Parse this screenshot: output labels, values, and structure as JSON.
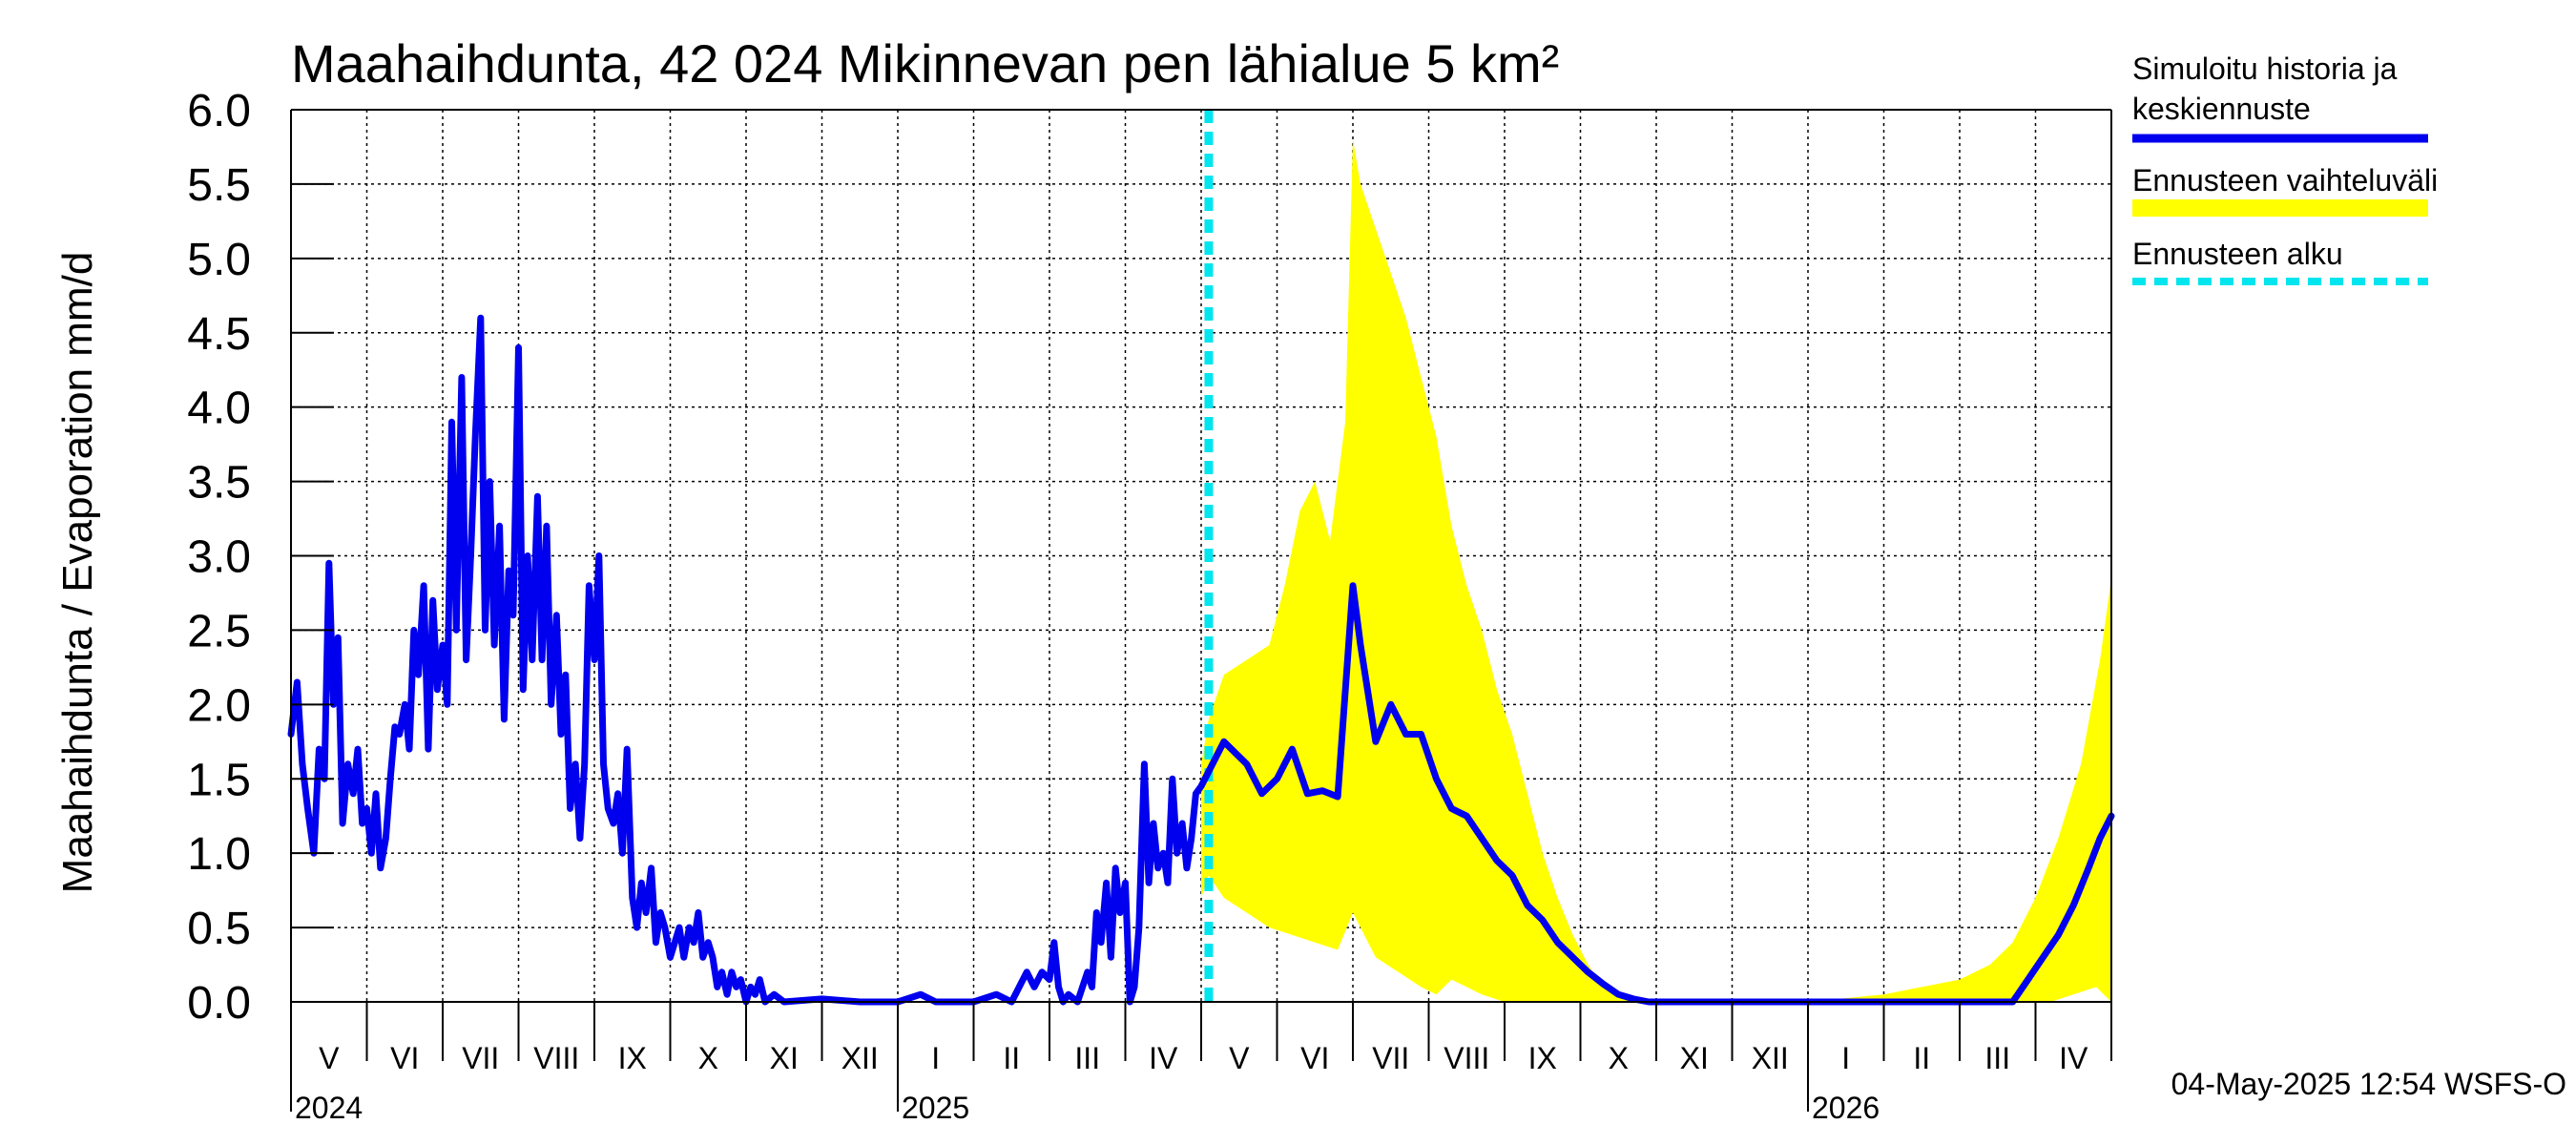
{
  "chart_data": {
    "type": "line",
    "title": "Maahaihdunta, 42 024 Mikinnevan pen lähialue 5 km²",
    "ylabel": "Maahaihdunta / Evaporation   mm/d",
    "ylim": [
      0,
      6
    ],
    "yticks": [
      "0.0",
      "0.5",
      "1.0",
      "1.5",
      "2.0",
      "2.5",
      "3.0",
      "3.5",
      "4.0",
      "4.5",
      "5.0",
      "5.5",
      "6.0"
    ],
    "x_range_months": [
      0,
      24
    ],
    "forecast_start_month": 12.1,
    "month_labels": [
      {
        "label": "V",
        "m": 0
      },
      {
        "label": "VI",
        "m": 1
      },
      {
        "label": "VII",
        "m": 2
      },
      {
        "label": "VIII",
        "m": 3
      },
      {
        "label": "IX",
        "m": 4
      },
      {
        "label": "X",
        "m": 5
      },
      {
        "label": "XI",
        "m": 6
      },
      {
        "label": "XII",
        "m": 7
      },
      {
        "label": "I",
        "m": 8
      },
      {
        "label": "II",
        "m": 9
      },
      {
        "label": "III",
        "m": 10
      },
      {
        "label": "IV",
        "m": 11
      },
      {
        "label": "V",
        "m": 12
      },
      {
        "label": "VI",
        "m": 13
      },
      {
        "label": "VII",
        "m": 14
      },
      {
        "label": "VIII",
        "m": 15
      },
      {
        "label": "IX",
        "m": 16
      },
      {
        "label": "X",
        "m": 17
      },
      {
        "label": "XI",
        "m": 18
      },
      {
        "label": "XII",
        "m": 19
      },
      {
        "label": "I",
        "m": 20
      },
      {
        "label": "II",
        "m": 21
      },
      {
        "label": "III",
        "m": 22
      },
      {
        "label": "IV",
        "m": 23
      }
    ],
    "year_labels": [
      {
        "label": "2024",
        "m": 0
      },
      {
        "label": "2025",
        "m": 8
      },
      {
        "label": "2026",
        "m": 20
      }
    ],
    "series": [
      {
        "name": "Simuloitu historia ja keskiennuste",
        "color": "#0000ee",
        "points": [
          [
            0.0,
            1.8
          ],
          [
            0.08,
            2.15
          ],
          [
            0.15,
            1.6
          ],
          [
            0.22,
            1.3
          ],
          [
            0.3,
            1.0
          ],
          [
            0.37,
            1.7
          ],
          [
            0.44,
            1.5
          ],
          [
            0.5,
            2.95
          ],
          [
            0.56,
            2.0
          ],
          [
            0.62,
            2.45
          ],
          [
            0.68,
            1.2
          ],
          [
            0.75,
            1.6
          ],
          [
            0.82,
            1.4
          ],
          [
            0.88,
            1.7
          ],
          [
            0.94,
            1.2
          ],
          [
            1.0,
            1.3
          ],
          [
            1.06,
            1.0
          ],
          [
            1.12,
            1.4
          ],
          [
            1.18,
            0.9
          ],
          [
            1.25,
            1.1
          ],
          [
            1.31,
            1.5
          ],
          [
            1.37,
            1.85
          ],
          [
            1.43,
            1.8
          ],
          [
            1.5,
            2.0
          ],
          [
            1.56,
            1.7
          ],
          [
            1.62,
            2.5
          ],
          [
            1.68,
            2.2
          ],
          [
            1.75,
            2.8
          ],
          [
            1.81,
            1.7
          ],
          [
            1.87,
            2.7
          ],
          [
            1.93,
            2.1
          ],
          [
            2.0,
            2.4
          ],
          [
            2.06,
            2.0
          ],
          [
            2.12,
            3.9
          ],
          [
            2.18,
            2.5
          ],
          [
            2.25,
            4.2
          ],
          [
            2.31,
            2.3
          ],
          [
            2.37,
            3.0
          ],
          [
            2.43,
            3.8
          ],
          [
            2.5,
            4.6
          ],
          [
            2.56,
            2.5
          ],
          [
            2.62,
            3.5
          ],
          [
            2.68,
            2.4
          ],
          [
            2.75,
            3.2
          ],
          [
            2.81,
            1.9
          ],
          [
            2.87,
            2.9
          ],
          [
            2.93,
            2.6
          ],
          [
            3.0,
            4.4
          ],
          [
            3.06,
            2.1
          ],
          [
            3.12,
            3.0
          ],
          [
            3.18,
            2.3
          ],
          [
            3.25,
            3.4
          ],
          [
            3.31,
            2.3
          ],
          [
            3.37,
            3.2
          ],
          [
            3.43,
            2.0
          ],
          [
            3.5,
            2.6
          ],
          [
            3.56,
            1.8
          ],
          [
            3.62,
            2.2
          ],
          [
            3.68,
            1.3
          ],
          [
            3.75,
            1.6
          ],
          [
            3.81,
            1.1
          ],
          [
            3.87,
            1.6
          ],
          [
            3.93,
            2.8
          ],
          [
            4.0,
            2.3
          ],
          [
            4.06,
            3.0
          ],
          [
            4.12,
            1.6
          ],
          [
            4.18,
            1.3
          ],
          [
            4.25,
            1.2
          ],
          [
            4.31,
            1.4
          ],
          [
            4.37,
            1.0
          ],
          [
            4.43,
            1.7
          ],
          [
            4.5,
            0.7
          ],
          [
            4.56,
            0.5
          ],
          [
            4.62,
            0.8
          ],
          [
            4.68,
            0.6
          ],
          [
            4.75,
            0.9
          ],
          [
            4.81,
            0.4
          ],
          [
            4.87,
            0.6
          ],
          [
            4.93,
            0.5
          ],
          [
            5.0,
            0.3
          ],
          [
            5.06,
            0.4
          ],
          [
            5.12,
            0.5
          ],
          [
            5.18,
            0.3
          ],
          [
            5.25,
            0.5
          ],
          [
            5.31,
            0.4
          ],
          [
            5.37,
            0.6
          ],
          [
            5.43,
            0.3
          ],
          [
            5.5,
            0.4
          ],
          [
            5.56,
            0.3
          ],
          [
            5.62,
            0.1
          ],
          [
            5.68,
            0.2
          ],
          [
            5.75,
            0.05
          ],
          [
            5.81,
            0.2
          ],
          [
            5.87,
            0.1
          ],
          [
            5.93,
            0.15
          ],
          [
            6.0,
            0.0
          ],
          [
            6.06,
            0.1
          ],
          [
            6.12,
            0.05
          ],
          [
            6.18,
            0.15
          ],
          [
            6.25,
            0.0
          ],
          [
            6.37,
            0.05
          ],
          [
            6.5,
            0.0
          ],
          [
            7.0,
            0.02
          ],
          [
            7.5,
            0.0
          ],
          [
            8.0,
            0.0
          ],
          [
            8.3,
            0.05
          ],
          [
            8.5,
            0.0
          ],
          [
            9.0,
            0.0
          ],
          [
            9.3,
            0.05
          ],
          [
            9.5,
            0.0
          ],
          [
            9.7,
            0.2
          ],
          [
            9.8,
            0.1
          ],
          [
            9.9,
            0.2
          ],
          [
            10.0,
            0.15
          ],
          [
            10.06,
            0.4
          ],
          [
            10.12,
            0.1
          ],
          [
            10.18,
            0.0
          ],
          [
            10.25,
            0.05
          ],
          [
            10.37,
            0.0
          ],
          [
            10.5,
            0.2
          ],
          [
            10.56,
            0.1
          ],
          [
            10.62,
            0.6
          ],
          [
            10.68,
            0.4
          ],
          [
            10.75,
            0.8
          ],
          [
            10.81,
            0.3
          ],
          [
            10.87,
            0.9
          ],
          [
            10.93,
            0.6
          ],
          [
            11.0,
            0.8
          ],
          [
            11.06,
            0.0
          ],
          [
            11.12,
            0.1
          ],
          [
            11.18,
            0.5
          ],
          [
            11.25,
            1.6
          ],
          [
            11.31,
            0.8
          ],
          [
            11.37,
            1.2
          ],
          [
            11.43,
            0.9
          ],
          [
            11.5,
            1.0
          ],
          [
            11.56,
            0.8
          ],
          [
            11.62,
            1.5
          ],
          [
            11.68,
            1.0
          ],
          [
            11.75,
            1.2
          ],
          [
            11.81,
            0.9
          ],
          [
            11.87,
            1.1
          ],
          [
            11.93,
            1.4
          ],
          [
            12.0,
            1.45
          ],
          [
            12.1,
            1.55
          ],
          [
            12.3,
            1.75
          ],
          [
            12.6,
            1.6
          ],
          [
            12.8,
            1.4
          ],
          [
            13.0,
            1.5
          ],
          [
            13.2,
            1.7
          ],
          [
            13.4,
            1.4
          ],
          [
            13.6,
            1.42
          ],
          [
            13.8,
            1.38
          ],
          [
            14.0,
            2.8
          ],
          [
            14.1,
            2.4
          ],
          [
            14.3,
            1.75
          ],
          [
            14.5,
            2.0
          ],
          [
            14.7,
            1.8
          ],
          [
            14.9,
            1.8
          ],
          [
            15.1,
            1.5
          ],
          [
            15.3,
            1.3
          ],
          [
            15.5,
            1.25
          ],
          [
            15.7,
            1.1
          ],
          [
            15.9,
            0.95
          ],
          [
            16.1,
            0.85
          ],
          [
            16.3,
            0.65
          ],
          [
            16.5,
            0.55
          ],
          [
            16.7,
            0.4
          ],
          [
            16.9,
            0.3
          ],
          [
            17.1,
            0.2
          ],
          [
            17.3,
            0.12
          ],
          [
            17.5,
            0.05
          ],
          [
            17.7,
            0.02
          ],
          [
            17.9,
            0.0
          ],
          [
            18.5,
            0.0
          ],
          [
            19.0,
            0.0
          ],
          [
            20.0,
            0.0
          ],
          [
            21.0,
            0.0
          ],
          [
            22.0,
            0.0
          ],
          [
            22.7,
            0.0
          ],
          [
            22.9,
            0.15
          ],
          [
            23.1,
            0.3
          ],
          [
            23.3,
            0.45
          ],
          [
            23.5,
            0.65
          ],
          [
            23.7,
            0.9
          ],
          [
            23.85,
            1.1
          ],
          [
            24.0,
            1.25
          ]
        ]
      }
    ],
    "band": {
      "name": "Ennusteen vaihteluväli",
      "color": "#ffff00",
      "upper": [
        [
          12.0,
          1.6
        ],
        [
          12.1,
          1.9
        ],
        [
          12.3,
          2.2
        ],
        [
          12.6,
          2.3
        ],
        [
          12.9,
          2.4
        ],
        [
          13.1,
          2.8
        ],
        [
          13.3,
          3.3
        ],
        [
          13.5,
          3.5
        ],
        [
          13.7,
          3.1
        ],
        [
          13.9,
          3.9
        ],
        [
          14.0,
          5.8
        ],
        [
          14.1,
          5.5
        ],
        [
          14.3,
          5.2
        ],
        [
          14.5,
          4.9
        ],
        [
          14.7,
          4.6
        ],
        [
          14.9,
          4.2
        ],
        [
          15.1,
          3.8
        ],
        [
          15.3,
          3.2
        ],
        [
          15.5,
          2.8
        ],
        [
          15.7,
          2.5
        ],
        [
          15.9,
          2.1
        ],
        [
          16.1,
          1.8
        ],
        [
          16.3,
          1.4
        ],
        [
          16.5,
          1.0
        ],
        [
          16.7,
          0.7
        ],
        [
          16.9,
          0.45
        ],
        [
          17.1,
          0.25
        ],
        [
          17.3,
          0.1
        ],
        [
          17.5,
          0.05
        ],
        [
          17.7,
          0.0
        ],
        [
          19.0,
          0.0
        ],
        [
          20.0,
          0.0
        ],
        [
          21.0,
          0.05
        ],
        [
          21.5,
          0.1
        ],
        [
          22.0,
          0.15
        ],
        [
          22.4,
          0.25
        ],
        [
          22.7,
          0.4
        ],
        [
          23.0,
          0.7
        ],
        [
          23.3,
          1.1
        ],
        [
          23.6,
          1.6
        ],
        [
          23.85,
          2.3
        ],
        [
          24.0,
          2.85
        ]
      ],
      "lower": [
        [
          12.0,
          0.7
        ],
        [
          12.1,
          0.85
        ],
        [
          12.3,
          0.7
        ],
        [
          12.6,
          0.6
        ],
        [
          12.9,
          0.5
        ],
        [
          13.2,
          0.45
        ],
        [
          13.5,
          0.4
        ],
        [
          13.8,
          0.35
        ],
        [
          14.0,
          0.6
        ],
        [
          14.3,
          0.3
        ],
        [
          14.6,
          0.2
        ],
        [
          14.9,
          0.1
        ],
        [
          15.1,
          0.05
        ],
        [
          15.3,
          0.15
        ],
        [
          15.5,
          0.1
        ],
        [
          15.7,
          0.05
        ],
        [
          16.0,
          0.0
        ],
        [
          17.0,
          0.0
        ],
        [
          18.0,
          0.0
        ],
        [
          19.0,
          0.0
        ],
        [
          20.0,
          0.0
        ],
        [
          22.0,
          0.0
        ],
        [
          22.8,
          0.0
        ],
        [
          23.2,
          0.0
        ],
        [
          23.5,
          0.05
        ],
        [
          23.8,
          0.1
        ],
        [
          24.0,
          0.0
        ]
      ]
    },
    "legend": [
      {
        "label_lines": [
          "Simuloitu historia ja",
          "keskiennuste"
        ],
        "style": "solid",
        "color": "#0000ee"
      },
      {
        "label_lines": [
          "Ennusteen vaihteluväli"
        ],
        "style": "band",
        "color": "#ffff00"
      },
      {
        "label_lines": [
          "Ennusteen alku"
        ],
        "style": "dashed",
        "color": "#00e5ee"
      }
    ],
    "footer": "04-May-2025 12:54 WSFS-O"
  }
}
